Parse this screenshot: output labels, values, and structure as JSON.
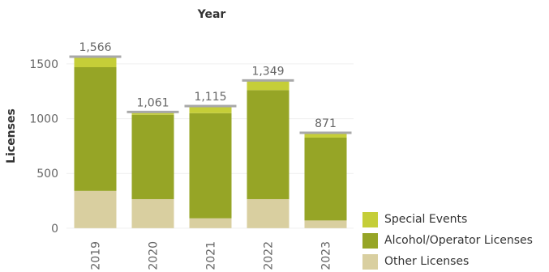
{
  "chart_data": {
    "type": "bar",
    "stacked": true,
    "title": "Year",
    "ylabel": "Licenses",
    "categories": [
      "2019",
      "2020",
      "2021",
      "2022",
      "2023"
    ],
    "series": [
      {
        "name": "Other Licenses",
        "values": [
          340,
          265,
          90,
          265,
          70
        ],
        "color": "#D9CFA0"
      },
      {
        "name": "Alcohol/Operator Licenses",
        "values": [
          1130,
          771,
          960,
          995,
          757
        ],
        "color": "#96A526"
      },
      {
        "name": "Special Events",
        "values": [
          96,
          25,
          65,
          89,
          44
        ],
        "color": "#C5CE38"
      }
    ],
    "totals": [
      "1,566",
      "1,061",
      "1,115",
      "1,349",
      "871"
    ],
    "total_values": [
      1566,
      1061,
      1115,
      1349,
      871
    ],
    "yticks": [
      0,
      500,
      1000,
      1500
    ],
    "ytick_labels": [
      "0",
      "500",
      "1000",
      "1500"
    ],
    "ylim": [
      -90,
      1640
    ],
    "grid": true,
    "legend_position": "bottom-right",
    "total_marker_color": "#A8A8A8"
  }
}
